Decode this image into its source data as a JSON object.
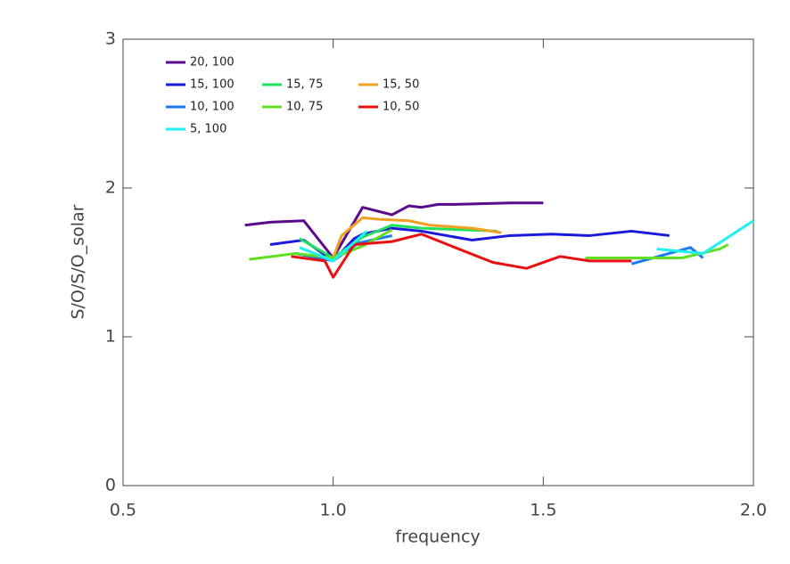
{
  "chart_data": {
    "type": "line",
    "xlabel": "frequency",
    "ylabel": "S/O/S/O_solar",
    "xlim": [
      0.5,
      2.0
    ],
    "ylim": [
      0,
      3
    ],
    "xticks": [
      0.5,
      {
        "value": 1,
        "label": "1.0"
      },
      1.5,
      {
        "value": 2,
        "label": "2.0"
      }
    ],
    "yticks": [
      0,
      1,
      2,
      3
    ],
    "series": [
      {
        "name": "20, 100",
        "color": "#5a0a8c",
        "x": [
          0.79,
          0.85,
          0.93,
          1.0,
          1.07,
          1.14,
          1.18,
          1.21,
          1.25,
          1.29,
          1.42,
          1.5
        ],
        "values": [
          1.75,
          1.77,
          1.78,
          1.53,
          1.87,
          1.82,
          1.88,
          1.87,
          1.89,
          1.89,
          1.9,
          1.9
        ]
      },
      {
        "name": "15, 100",
        "color": "#1a1adc",
        "x": [
          0.85,
          0.93,
          1.0,
          1.05,
          1.07,
          1.14,
          1.21,
          1.33,
          1.42,
          1.52,
          1.61,
          1.71,
          1.8
        ],
        "values": [
          1.62,
          1.65,
          1.51,
          1.66,
          1.69,
          1.73,
          1.71,
          1.65,
          1.68,
          1.69,
          1.68,
          1.71,
          1.68
        ]
      },
      {
        "name": "15, 75",
        "color": "#20e060",
        "x": [
          0.92,
          1.0,
          1.07,
          1.14,
          1.21,
          1.39
        ],
        "values": [
          1.66,
          1.53,
          1.67,
          1.75,
          1.73,
          1.71
        ]
      },
      {
        "name": "15, 50",
        "color": "#f0a020",
        "x": [
          1.0,
          1.02,
          1.07,
          1.11,
          1.18,
          1.23,
          1.33,
          1.4
        ],
        "values": [
          1.53,
          1.68,
          1.8,
          1.79,
          1.78,
          1.75,
          1.73,
          1.7
        ]
      },
      {
        "name": "10, 100",
        "color": "#1e78f0",
        "x": [
          0.91,
          1.0,
          1.06,
          1.14,
          1.43,
          1.71,
          1.85,
          1.88
        ],
        "values": [
          1.56,
          1.51,
          1.63,
          1.68,
          null,
          1.49,
          1.6,
          1.53
        ]
      },
      {
        "name": "10, 75",
        "color": "#60e020",
        "x": [
          0.8,
          0.91,
          1.0,
          1.07,
          1.14,
          1.4,
          1.6,
          1.78,
          1.83,
          1.92,
          1.94
        ],
        "values": [
          1.52,
          1.56,
          1.53,
          1.61,
          1.72,
          null,
          1.53,
          1.53,
          1.53,
          1.59,
          1.62
        ]
      },
      {
        "name": "10, 50",
        "color": "#e81010",
        "x": [
          0.9,
          0.98,
          1.0,
          1.05,
          1.14,
          1.21,
          1.29,
          1.38,
          1.46,
          1.54,
          1.61,
          1.71
        ],
        "values": [
          1.54,
          1.51,
          1.4,
          1.62,
          1.64,
          1.69,
          1.6,
          1.5,
          1.46,
          1.54,
          1.51,
          1.51
        ]
      },
      {
        "name": "5, 100",
        "color": "#20f0f0",
        "x": [
          0.92,
          1.0,
          1.08,
          1.4,
          1.77,
          1.88,
          2.0
        ],
        "values": [
          1.6,
          1.51,
          1.71,
          null,
          1.59,
          1.56,
          1.78
        ]
      }
    ]
  }
}
